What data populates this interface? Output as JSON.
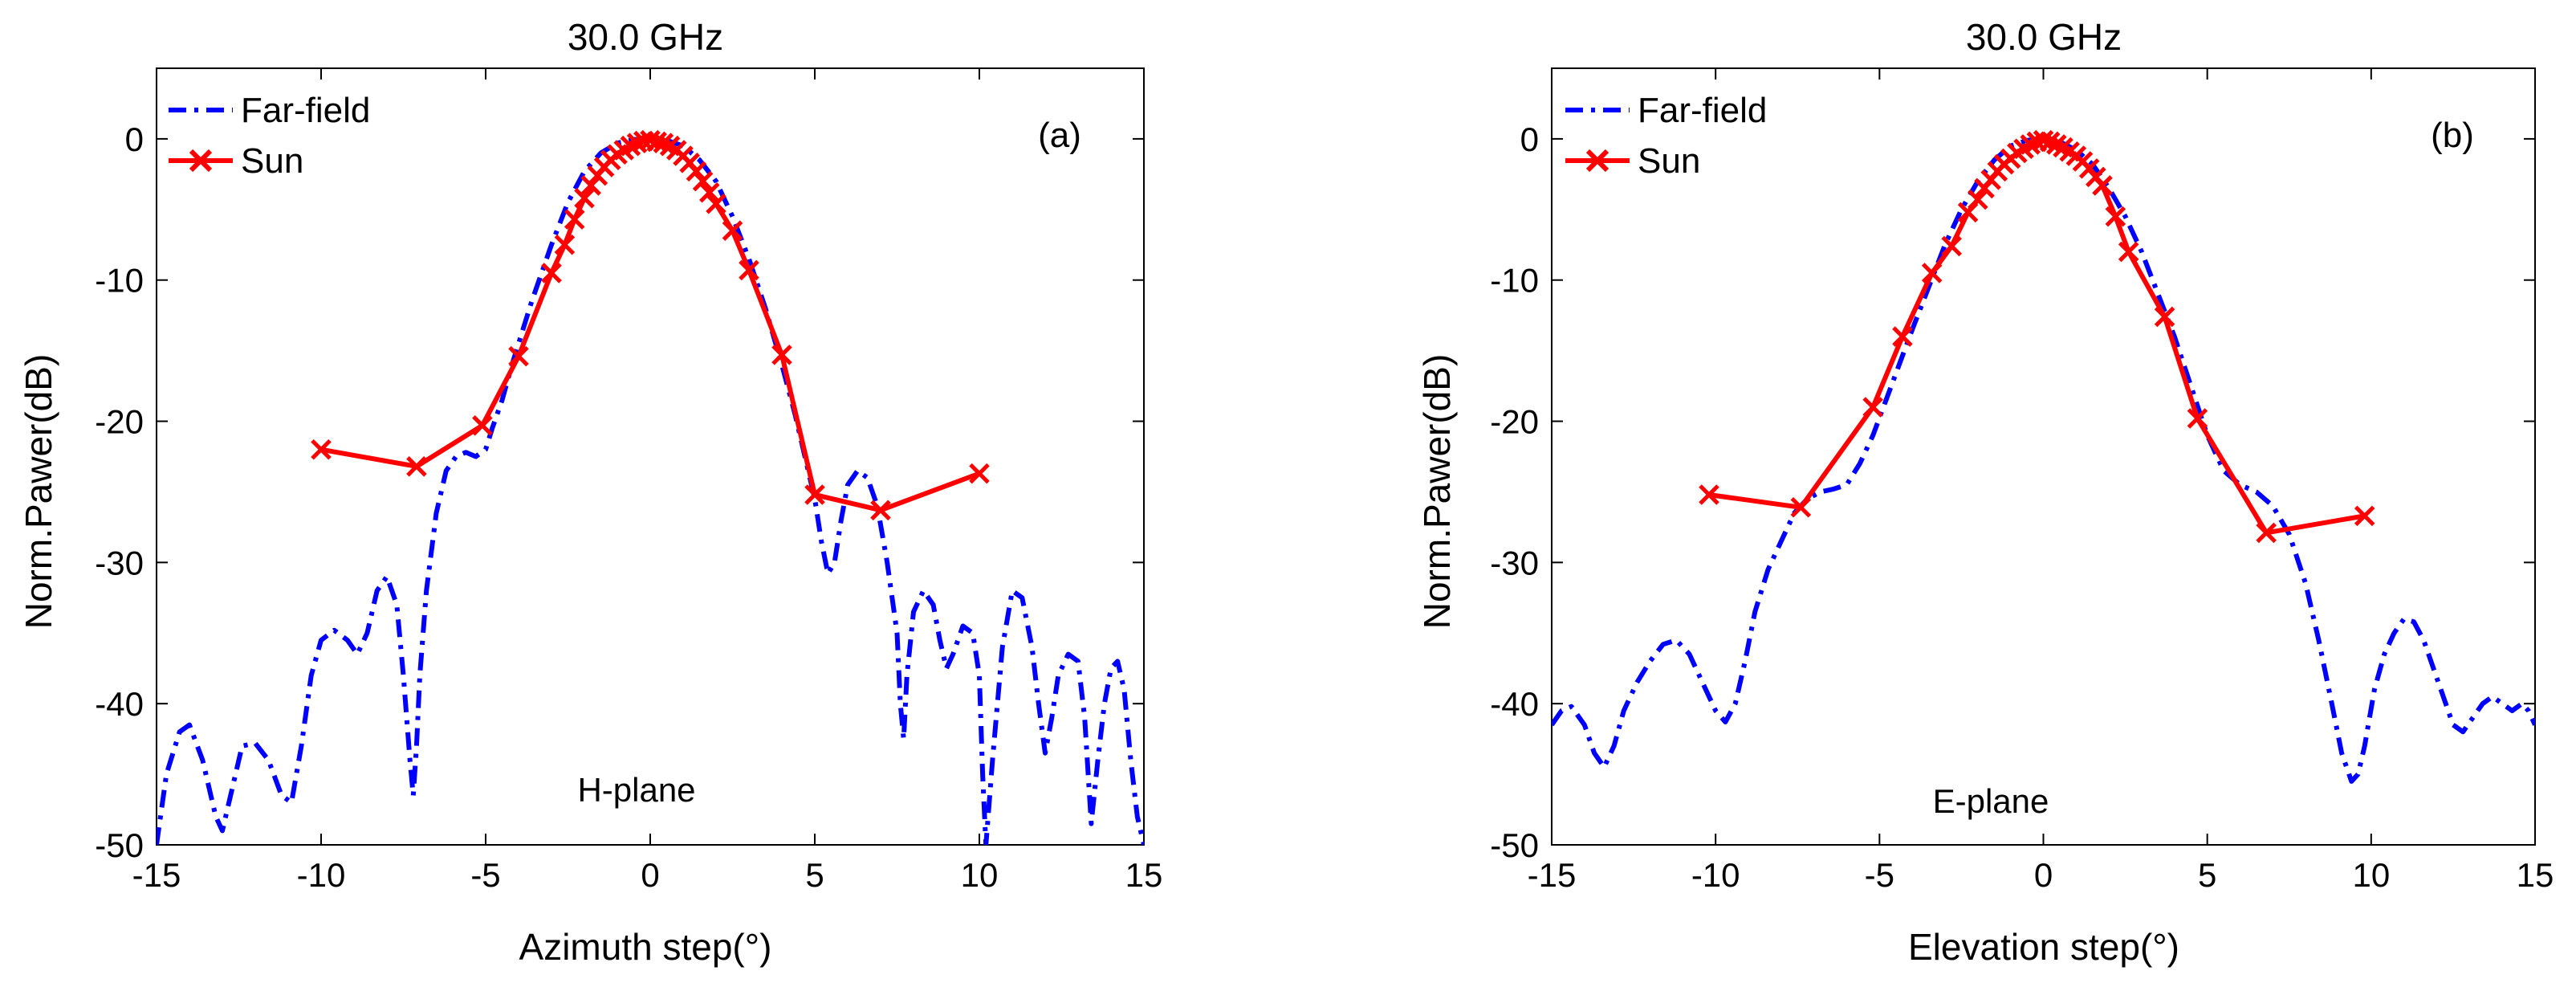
{
  "colors": {
    "far_field": "#0000ff",
    "sun": "#ff0000",
    "axes": "#000000",
    "background": "#ffffff"
  },
  "chart_data": [
    {
      "id": "a",
      "type": "line",
      "title": "30.0 GHz",
      "xlabel": "Azimuth step(°)",
      "ylabel": "Norm.Pawer(dB)",
      "xlim": [
        -15,
        15
      ],
      "ylim": [
        -50,
        5
      ],
      "xticks": [
        -15,
        -10,
        -5,
        0,
        5,
        10,
        15
      ],
      "yticks": [
        -50,
        -40,
        -30,
        -20,
        -10,
        0
      ],
      "panel_tag": "(a)",
      "plane_label": "H-plane",
      "legend": {
        "position": "top-left",
        "entries": [
          "Far-field",
          "Sun"
        ]
      },
      "series": [
        {
          "name": "Far-field",
          "style": "dash-dot",
          "x": [
            -15,
            -14.7,
            -14.3,
            -14,
            -13.6,
            -13.2,
            -13,
            -12.7,
            -12.4,
            -12,
            -11.6,
            -11.2,
            -10.9,
            -10.6,
            -10.3,
            -10,
            -9.6,
            -9.2,
            -8.9,
            -8.6,
            -8.3,
            -8,
            -7.7,
            -7.5,
            -7.3,
            -7.2,
            -7.1,
            -7,
            -6.8,
            -6.5,
            -6.2,
            -5.9,
            -5.6,
            -5.3,
            -5,
            -4.8,
            -4.5,
            -4.2,
            -4,
            -3.6,
            -3,
            -2.5,
            -2,
            -1.5,
            -1,
            -0.5,
            0,
            0.5,
            1,
            1.5,
            2,
            2.5,
            3,
            3.5,
            4,
            4.4,
            4.7,
            5,
            5.2,
            5.4,
            5.6,
            5.8,
            6,
            6.3,
            6.6,
            6.9,
            7.2,
            7.5,
            7.6,
            7.7,
            7.8,
            8,
            8.3,
            8.6,
            8.8,
            9,
            9.2,
            9.5,
            9.8,
            10,
            10.1,
            10.2,
            10.4,
            10.7,
            11,
            11.3,
            11.6,
            11.8,
            12,
            12.2,
            12.4,
            12.7,
            13,
            13.2,
            13.4,
            13.6,
            13.8,
            14,
            14.2,
            14.4,
            14.6,
            14.8,
            15
          ],
          "y": [
            -50,
            -45,
            -42,
            -41.5,
            -44,
            -48,
            -49,
            -46,
            -43,
            -42.8,
            -44,
            -46.5,
            -47,
            -43,
            -38,
            -35.5,
            -34.8,
            -35.5,
            -36.5,
            -35,
            -32,
            -31,
            -33,
            -38,
            -44,
            -46.5,
            -43,
            -38,
            -32,
            -26.5,
            -23.5,
            -22.5,
            -22.2,
            -22.5,
            -22,
            -20.5,
            -18.5,
            -16,
            -14.5,
            -11.5,
            -7.5,
            -4.5,
            -2.3,
            -1,
            -0.3,
            -0.05,
            0,
            -0.1,
            -0.5,
            -1.5,
            -3,
            -5.5,
            -8.5,
            -12,
            -16,
            -19.5,
            -22.5,
            -25.5,
            -28.5,
            -30.8,
            -30,
            -27,
            -24.5,
            -23.5,
            -24,
            -26,
            -30,
            -35,
            -40,
            -42.5,
            -38,
            -33.5,
            -32,
            -33,
            -35.5,
            -37.5,
            -36.5,
            -34.5,
            -35,
            -38,
            -45,
            -50,
            -44,
            -36,
            -32,
            -32.5,
            -36,
            -40,
            -43.5,
            -41,
            -38,
            -36.5,
            -37,
            -41,
            -48.5,
            -44,
            -40,
            -37.5,
            -37,
            -39,
            -44,
            -48,
            -50
          ]
        },
        {
          "name": "Sun",
          "style": "solid-x",
          "x": [
            -10,
            -7.1,
            -5.1,
            -4,
            -3,
            -2.6,
            -2.3,
            -2,
            -1.8,
            -1.6,
            -1.4,
            -1.2,
            -1,
            -0.8,
            -0.6,
            -0.4,
            -0.2,
            0,
            0.2,
            0.4,
            0.6,
            0.8,
            1,
            1.2,
            1.4,
            1.6,
            1.8,
            2,
            2.5,
            3,
            4,
            5,
            7,
            10
          ],
          "y": [
            -22,
            -23.2,
            -20.3,
            -15.4,
            -9.5,
            -7.5,
            -5.7,
            -4.2,
            -3.3,
            -2.6,
            -2,
            -1.5,
            -1.1,
            -0.8,
            -0.5,
            -0.3,
            -0.15,
            -0.1,
            -0.2,
            -0.3,
            -0.5,
            -0.8,
            -1.2,
            -1.7,
            -2.3,
            -3,
            -3.8,
            -4.6,
            -6.5,
            -9.3,
            -15.3,
            -25.2,
            -26.3,
            -23.7
          ]
        }
      ]
    },
    {
      "id": "b",
      "type": "line",
      "title": "30.0 GHz",
      "xlabel": "Elevation step(°)",
      "ylabel": "Norm.Pawer(dB)",
      "xlim": [
        -15,
        15
      ],
      "ylim": [
        -50,
        5
      ],
      "xticks": [
        -15,
        -10,
        -5,
        0,
        5,
        10,
        15
      ],
      "yticks": [
        -50,
        -40,
        -30,
        -20,
        -10,
        0
      ],
      "panel_tag": "(b)",
      "plane_label": "E-plane",
      "legend": {
        "position": "top-left",
        "entries": [
          "Far-field",
          "Sun"
        ]
      },
      "series": [
        {
          "name": "Far-field",
          "style": "dash-dot",
          "x": [
            -15,
            -14.7,
            -14.4,
            -14,
            -13.7,
            -13.4,
            -13.1,
            -12.8,
            -12.4,
            -12,
            -11.6,
            -11.2,
            -10.8,
            -10.4,
            -10,
            -9.7,
            -9.4,
            -9.1,
            -8.8,
            -8.4,
            -8,
            -7.6,
            -7.2,
            -6.8,
            -6.4,
            -6,
            -5.6,
            -5.2,
            -4.8,
            -4.4,
            -4,
            -3.5,
            -3,
            -2.5,
            -2,
            -1.5,
            -1,
            -0.5,
            0,
            0.5,
            1,
            1.5,
            2,
            2.5,
            3,
            3.5,
            4,
            4.5,
            5,
            5.5,
            6,
            6.5,
            7,
            7.5,
            8,
            8.4,
            8.8,
            9.1,
            9.4,
            9.6,
            9.8,
            10.1,
            10.4,
            10.7,
            11,
            11.3,
            11.6,
            11.9,
            12.2,
            12.5,
            12.8,
            13.1,
            13.4,
            13.7,
            14,
            14.3,
            14.6,
            14.8,
            15
          ],
          "y": [
            -41.5,
            -40.5,
            -40.2,
            -41.5,
            -43.5,
            -44.5,
            -43,
            -40.5,
            -38.5,
            -37,
            -35.8,
            -35.5,
            -36.5,
            -38.5,
            -40.5,
            -41.3,
            -40,
            -37,
            -33.5,
            -30.5,
            -28.5,
            -26.5,
            -25.5,
            -25,
            -24.8,
            -24.5,
            -23,
            -21,
            -18.5,
            -16,
            -13.5,
            -10.5,
            -7.5,
            -5,
            -3,
            -1.5,
            -0.5,
            -0.1,
            0,
            -0.2,
            -0.8,
            -1.8,
            -3.5,
            -5.5,
            -8,
            -11,
            -14,
            -17.5,
            -21,
            -23.5,
            -24.5,
            -25,
            -26,
            -28,
            -31.5,
            -35.5,
            -40,
            -43.5,
            -45.5,
            -45,
            -43,
            -39,
            -36.5,
            -35,
            -34,
            -34.2,
            -35.5,
            -37.5,
            -39.5,
            -41.5,
            -42,
            -41,
            -40,
            -39.5,
            -40,
            -40.5,
            -40,
            -40.5,
            -41.5
          ]
        },
        {
          "name": "Sun",
          "style": "solid-x",
          "x": [
            -10.2,
            -7.4,
            -5.2,
            -4.3,
            -3.4,
            -2.8,
            -2.3,
            -2,
            -1.8,
            -1.6,
            -1.4,
            -1.2,
            -1,
            -0.8,
            -0.6,
            -0.4,
            -0.2,
            0,
            0.2,
            0.4,
            0.6,
            0.8,
            1,
            1.2,
            1.4,
            1.6,
            1.8,
            2.2,
            2.6,
            3.7,
            4.7,
            6.8,
            9.8
          ],
          "y": [
            -25.2,
            -26.1,
            -19,
            -14,
            -9.5,
            -7.6,
            -5.2,
            -4.3,
            -3.5,
            -2.9,
            -2.3,
            -1.8,
            -1.4,
            -1,
            -0.7,
            -0.4,
            -0.2,
            -0.1,
            -0.2,
            -0.4,
            -0.6,
            -0.9,
            -1.2,
            -1.6,
            -2.1,
            -2.7,
            -3.3,
            -5.5,
            -8,
            -12.6,
            -19.8,
            -27.9,
            -26.7
          ]
        }
      ]
    }
  ]
}
